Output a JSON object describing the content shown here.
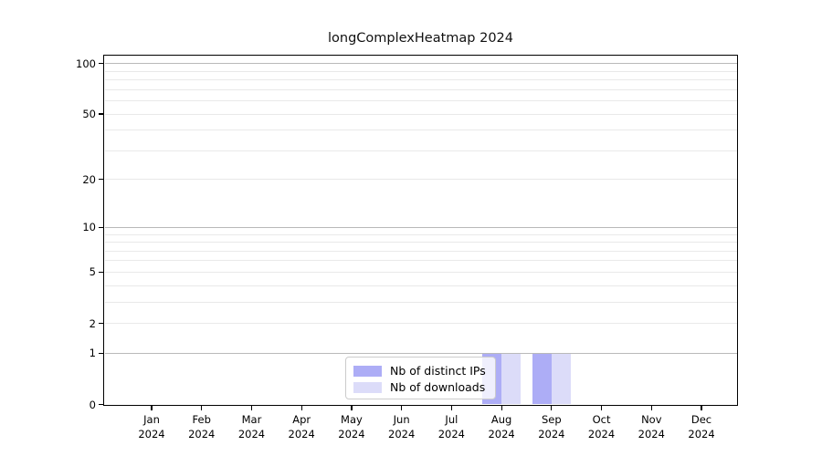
{
  "title": "longComplexHeatmap 2024",
  "chart_data": {
    "type": "bar",
    "title": "longComplexHeatmap 2024",
    "categories": [
      "Jan",
      "Feb",
      "Mar",
      "Apr",
      "May",
      "Jun",
      "Jul",
      "Aug",
      "Sep",
      "Oct",
      "Nov",
      "Dec"
    ],
    "year_label": "2024",
    "series": [
      {
        "name": "Nb of distinct IPs",
        "color": "#adadf6",
        "values": [
          0,
          0,
          0,
          0,
          0,
          0,
          0,
          1,
          1,
          0,
          0,
          0
        ]
      },
      {
        "name": "Nb of downloads",
        "color": "#dcdcf9",
        "values": [
          0,
          0,
          0,
          0,
          0,
          0,
          0,
          1,
          1,
          0,
          0,
          0
        ]
      }
    ],
    "xlabel": "",
    "ylabel": "",
    "yscale": "log1p",
    "ylim": [
      0,
      112
    ],
    "ytick_values": [
      0,
      1,
      2,
      5,
      10,
      20,
      50,
      100
    ],
    "ytick_labels": [
      "0",
      "1",
      "2",
      "5",
      "10",
      "20",
      "50",
      "100"
    ],
    "major_grid_values": [
      1,
      10,
      100
    ],
    "minor_grid_values": [
      2,
      3,
      4,
      5,
      6,
      7,
      8,
      9,
      20,
      30,
      40,
      50,
      60,
      70,
      80,
      90
    ],
    "grid": true,
    "legend_position": "inside-bottom-center"
  },
  "legend": {
    "items": [
      {
        "label": "Nb of distinct IPs",
        "color": "#adadf6"
      },
      {
        "label": "Nb of downloads",
        "color": "#dcdcf9"
      }
    ]
  },
  "colors": {
    "major_grid": "#b9b9b9",
    "minor_grid": "#e9e9e9",
    "spine": "#000000",
    "background": "#ffffff",
    "text": "#000000",
    "legend_border": "#cccccc"
  }
}
